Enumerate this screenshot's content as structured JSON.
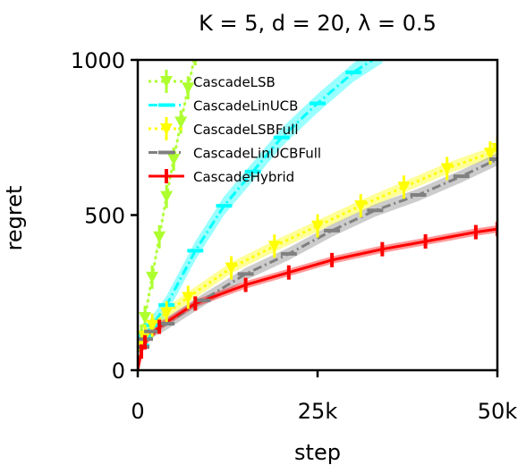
{
  "chart_data": {
    "type": "line",
    "title": "K = 5, d = 20, λ = 0.5",
    "xlabel": "step",
    "ylabel": "regret",
    "xlim": [
      0,
      50000
    ],
    "ylim": [
      0,
      1000
    ],
    "xticks": [
      {
        "value": 0,
        "label": "0"
      },
      {
        "value": 25000,
        "label": "25k"
      },
      {
        "value": 50000,
        "label": "50k"
      }
    ],
    "yticks": [
      {
        "value": 0,
        "label": "0"
      },
      {
        "value": 500,
        "label": "500"
      },
      {
        "value": 1000,
        "label": "1000"
      }
    ],
    "grid": false,
    "legend_position": "top-left",
    "series": [
      {
        "name": "CascadeLSB",
        "color": "#adff2f",
        "dash": "dotted",
        "marker": "triangle-down",
        "x": [
          0,
          500,
          1000,
          2000,
          3000,
          4000,
          5000,
          6000,
          7000,
          8000
        ],
        "y": [
          0,
          110,
          170,
          300,
          430,
          560,
          680,
          800,
          910,
          1020
        ],
        "band": 10
      },
      {
        "name": "CascadeLinUCB",
        "color": "#00ffff",
        "dash": "dashdot",
        "marker": "hline",
        "x": [
          0,
          500,
          1000,
          2000,
          4000,
          8000,
          12000,
          16000,
          20000,
          25000,
          30000,
          34000
        ],
        "y": [
          0,
          80,
          110,
          145,
          210,
          385,
          530,
          640,
          750,
          860,
          960,
          1020
        ],
        "band": 30
      },
      {
        "name": "CascadeLSBFull",
        "color": "#ffff00",
        "dash": "dotted",
        "marker": "triangle-down",
        "x": [
          0,
          500,
          1000,
          2000,
          4000,
          7000,
          13000,
          19000,
          25000,
          31000,
          37000,
          43000,
          49000,
          50000
        ],
        "y": [
          0,
          80,
          110,
          145,
          185,
          235,
          330,
          400,
          465,
          530,
          590,
          650,
          700,
          715
        ],
        "band": 18
      },
      {
        "name": "CascadeLinUCBFull",
        "color": "#808080",
        "dash": "dashdot",
        "marker": "hline",
        "x": [
          0,
          500,
          1000,
          2000,
          4000,
          9000,
          15000,
          21000,
          27000,
          33000,
          39000,
          45000,
          50000
        ],
        "y": [
          0,
          75,
          100,
          125,
          150,
          225,
          310,
          375,
          450,
          515,
          565,
          625,
          680
        ],
        "band": 20
      },
      {
        "name": "CascadeHybrid",
        "color": "#ff0000",
        "dash": "solid",
        "marker": "vbar",
        "x": [
          0,
          500,
          1000,
          3000,
          8000,
          15000,
          21000,
          27000,
          34000,
          40000,
          47000,
          50000
        ],
        "y": [
          0,
          60,
          90,
          140,
          215,
          275,
          315,
          355,
          390,
          415,
          445,
          455
        ],
        "band": 12
      }
    ]
  }
}
